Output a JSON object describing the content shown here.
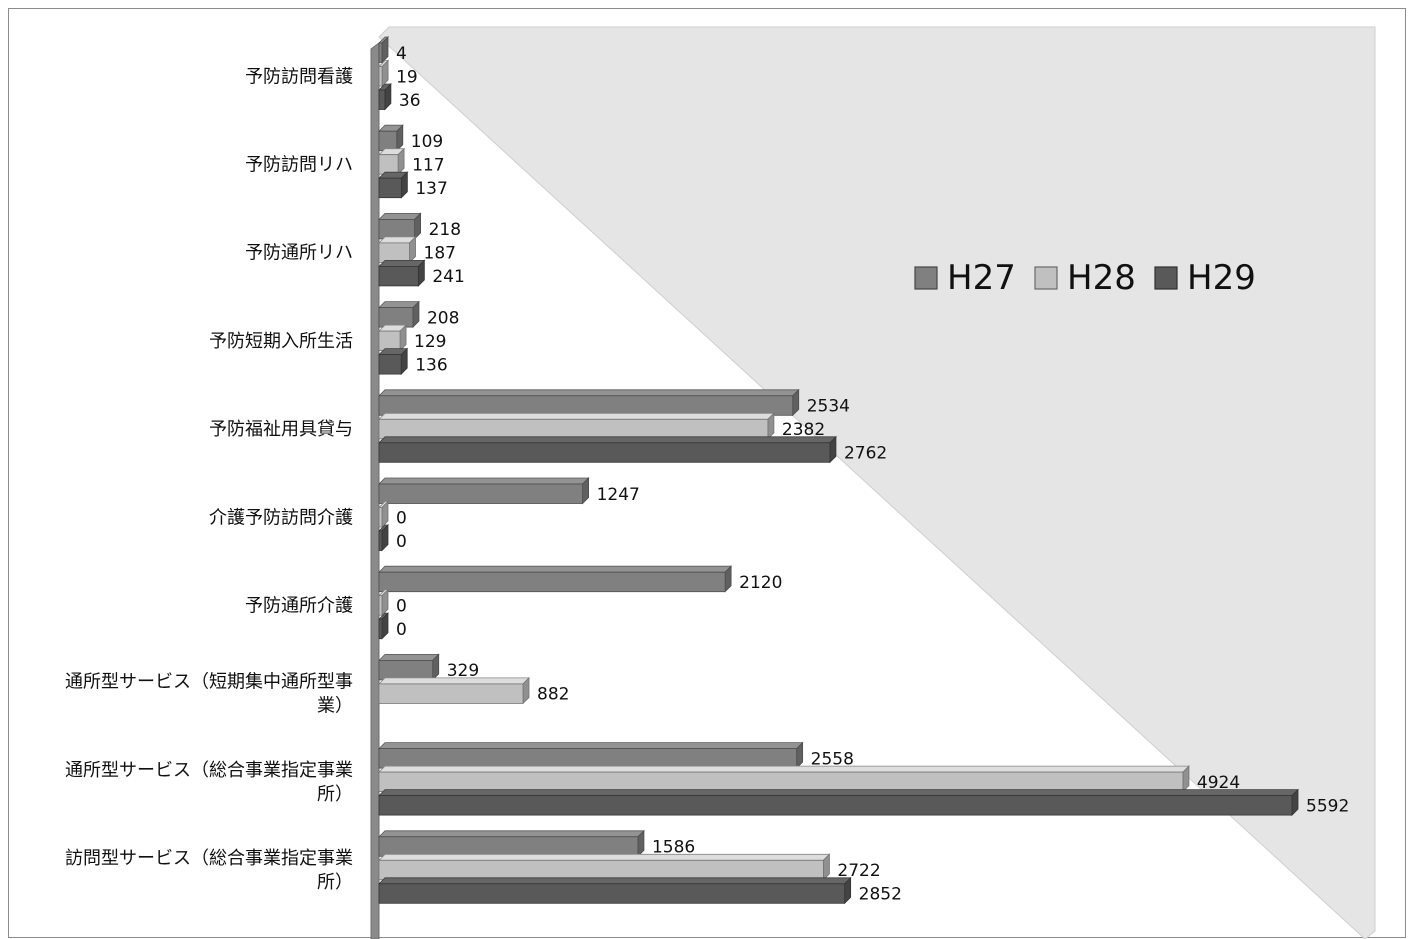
{
  "chart_data": {
    "type": "bar",
    "orientation": "horizontal",
    "three_d": true,
    "categories": [
      "予防訪問看護",
      "予防訪問リハ",
      "予防通所リハ",
      "予防短期入所生活",
      "予防福祉用具貸与",
      "介護予防訪問介護",
      "予防通所介護",
      "通所型サービス（短期集中通所型事業）",
      "通所型サービス（総合事業指定事業所）",
      "訪問型サービス（総合事業指定事業所）"
    ],
    "series": [
      {
        "name": "H27",
        "color": "#808080",
        "values": [
          4,
          109,
          218,
          208,
          2534,
          1247,
          2120,
          329,
          2558,
          1586
        ]
      },
      {
        "name": "H28",
        "color": "#c0c0c0",
        "values": [
          19,
          117,
          187,
          129,
          2382,
          0,
          0,
          882,
          4924,
          2722
        ]
      },
      {
        "name": "H29",
        "color": "#595959",
        "values": [
          36,
          137,
          241,
          136,
          2762,
          0,
          0,
          null,
          5592,
          2852
        ]
      }
    ],
    "xlim": [
      0,
      5592
    ],
    "grid": false,
    "legend_position": "right",
    "data_labels": true
  }
}
